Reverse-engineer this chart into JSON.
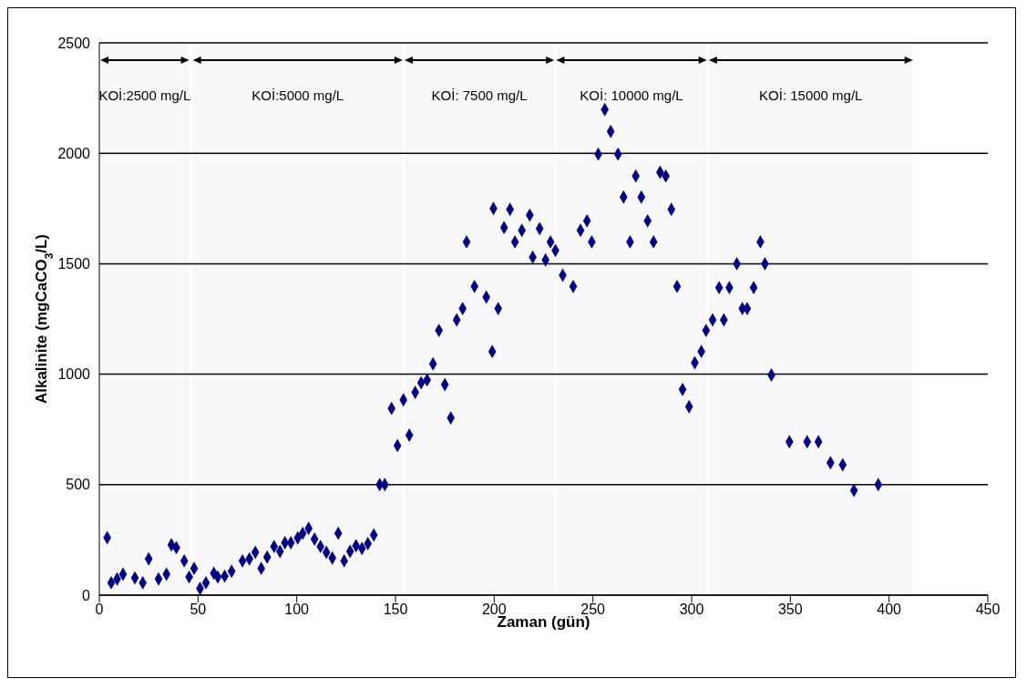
{
  "chart_data": {
    "type": "scatter",
    "xlabel": "Zaman (gün)",
    "ylabel": "Alkalinite (mgCaCO$_{3}$/L)",
    "xlim": [
      0,
      450
    ],
    "xticks": [
      0,
      50,
      100,
      150,
      200,
      250,
      300,
      350,
      400,
      450
    ],
    "ylim": [
      0,
      2500
    ],
    "yticks": [
      0,
      500,
      1000,
      1500,
      2000,
      2500
    ],
    "grid": "y",
    "marker": "diamond",
    "legend": false,
    "bands": [
      {
        "axis": "x",
        "from": 0.5,
        "to": 45.5,
        "label": "KOİ:2500 mg/L"
      },
      {
        "axis": "x",
        "from": 47.4,
        "to": 153.6,
        "label": "KOİ:5000 mg/L"
      },
      {
        "axis": "x",
        "from": 154.6,
        "to": 230.4,
        "label": "KOİ: 7500 mg/L"
      },
      {
        "axis": "x",
        "from": 231.4,
        "to": 307.7,
        "label": "KOİ: 10000 mg/L"
      },
      {
        "axis": "x",
        "from": 308.7,
        "to": 412,
        "label": "KOİ: 15000 mg/L"
      }
    ],
    "series": [
      {
        "color": "#000080",
        "x": [
          4,
          6,
          9,
          12,
          18,
          22,
          25,
          30,
          34,
          36.5,
          39,
          43,
          45.5,
          48,
          51,
          54,
          58,
          60,
          63.5,
          67,
          72.5,
          76,
          79,
          82,
          85,
          88.5,
          91.5,
          94,
          97,
          100.5,
          103,
          106,
          109,
          112,
          115,
          118,
          121,
          124,
          127,
          130,
          133,
          136,
          139,
          142,
          144.6,
          148,
          151,
          154,
          157,
          160,
          163,
          166,
          169,
          172,
          175,
          178,
          181,
          184,
          186,
          190,
          196,
          199,
          199.6,
          202,
          205,
          208,
          210.5,
          214,
          218,
          219.5,
          223,
          226,
          228.5,
          231,
          234.7,
          240,
          243.7,
          247,
          249.4,
          252.7,
          256,
          259,
          262.7,
          265.5,
          268.8,
          271.7,
          274.5,
          277.7,
          280.7,
          284,
          286.9,
          289.7,
          292.6,
          295.4,
          298.7,
          301.6,
          304.9,
          307.3,
          310.6,
          313.9,
          316.3,
          319.1,
          322.9,
          325.7,
          328.1,
          331.4,
          334.8,
          337.1,
          340.4,
          349.5,
          358.5,
          364.2,
          370.3,
          376.5,
          382.2,
          394.5
        ],
        "values": [
          260,
          56,
          73,
          95,
          78,
          56,
          164,
          73,
          95,
          228,
          215,
          155,
          82,
          121,
          30,
          56,
          99,
          82,
          86,
          108,
          155,
          164,
          194,
          121,
          172,
          220,
          198,
          237,
          237,
          259,
          280,
          302,
          254,
          220,
          194,
          168,
          280,
          155,
          198,
          224,
          211,
          233,
          272,
          500,
          500,
          845,
          677,
          884,
          724,
          918,
          961,
          974,
          1047,
          1198,
          953,
          802,
          1246,
          1297,
          1599,
          1397,
          1349,
          1103,
          1750,
          1297,
          1664,
          1746,
          1599,
          1651,
          1720,
          1530,
          1659,
          1517,
          1599,
          1560,
          1448,
          1397,
          1651,
          1694,
          1599,
          1996,
          2198,
          2099,
          1996,
          1802,
          1599,
          1897,
          1802,
          1694,
          1599,
          1914,
          1897,
          1746,
          1397,
          931,
          853,
          1052,
          1103,
          1198,
          1246,
          1392,
          1246,
          1392,
          1500,
          1297,
          1297,
          1392,
          1599,
          1500,
          996,
          694,
          694,
          694,
          599,
          590,
          474,
          500
        ]
      }
    ]
  }
}
